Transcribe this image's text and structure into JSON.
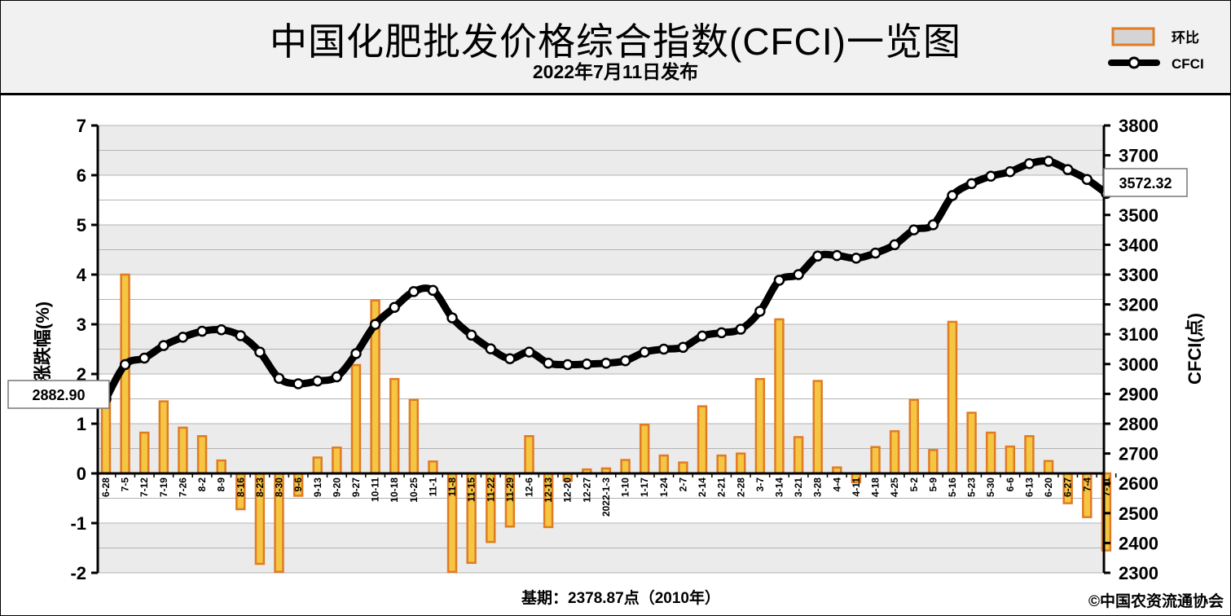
{
  "header": {
    "title": "中国化肥批发价格综合指数(CFCI)一览图",
    "subtitle": "2022年7月11日发布"
  },
  "footer": {
    "base_period": "基期：2378.87点（2010年）",
    "copyright": "©中国农资流通协会"
  },
  "legend": {
    "bar_label": "环比",
    "line_label": "CFCI"
  },
  "callouts": {
    "start_value": "2882.90",
    "end_value": "3572.32"
  },
  "colors": {
    "bar_fill": "#f5c642",
    "bar_edge": "#e07b24",
    "line": "#000000",
    "grid": "#b3b3b3",
    "band": "#ebebeb"
  },
  "chart_data": {
    "type": "bar+line",
    "categories": [
      "6-28",
      "7-5",
      "7-12",
      "7-19",
      "7-26",
      "8-2",
      "8-9",
      "8-16",
      "8-23",
      "8-30",
      "9-6",
      "9-13",
      "9-20",
      "9-27",
      "10-11",
      "10-18",
      "10-25",
      "11-1",
      "11-8",
      "11-15",
      "11-22",
      "11-29",
      "12-6",
      "12-13",
      "12-20",
      "12-27",
      "2022-1-3",
      "1-10",
      "1-17",
      "1-24",
      "2-7",
      "2-14",
      "2-21",
      "2-28",
      "3-7",
      "3-14",
      "3-21",
      "3-28",
      "4-4",
      "4-11",
      "4-18",
      "4-25",
      "5-2",
      "5-9",
      "5-16",
      "5-23",
      "5-30",
      "6-6",
      "6-13",
      "6-20",
      "6-27",
      "7-4",
      "7-11"
    ],
    "series": [
      {
        "name": "环比",
        "type": "bar",
        "axis": "left",
        "values": [
          1.5,
          4.0,
          0.82,
          1.45,
          0.92,
          0.75,
          0.26,
          -0.72,
          -1.82,
          -1.98,
          -0.45,
          0.32,
          0.52,
          2.18,
          3.48,
          1.9,
          1.48,
          0.24,
          -1.98,
          -1.8,
          -1.38,
          -1.07,
          0.75,
          -1.08,
          -0.15,
          0.08,
          0.1,
          0.27,
          0.98,
          0.36,
          0.22,
          1.35,
          0.36,
          0.4,
          1.9,
          3.1,
          0.73,
          1.86,
          0.12,
          -0.18,
          0.53,
          0.85,
          1.48,
          0.47,
          3.05,
          1.22,
          0.82,
          0.54,
          0.75,
          0.25,
          -0.6,
          -0.88,
          -1.55
        ]
      },
      {
        "name": "CFCI",
        "type": "line",
        "axis": "right",
        "values": [
          2882.9,
          2998,
          3020,
          3062,
          3090,
          3110,
          3115,
          3095,
          3040,
          2952,
          2934,
          2943,
          2957,
          3035,
          3133,
          3190,
          3243,
          3247,
          3155,
          3097,
          3051,
          3018,
          3040,
          3003,
          2998,
          3000,
          3003,
          3011,
          3040,
          3050,
          3056,
          3094,
          3105,
          3117,
          3177,
          3281,
          3300,
          3362,
          3364,
          3355,
          3372,
          3400,
          3450,
          3467,
          3565,
          3605,
          3630,
          3645,
          3672,
          3680,
          3652,
          3619,
          3572.32
        ]
      }
    ],
    "y_left": {
      "label": "涨跌幅(%)",
      "range": [
        -2,
        7
      ],
      "ticks": [
        -2,
        -1,
        0,
        1,
        2,
        3,
        4,
        5,
        6,
        7
      ]
    },
    "y_right": {
      "label": "CFCI(点)",
      "range": [
        2300,
        3800
      ],
      "ticks": [
        2300,
        2400,
        2500,
        2600,
        2700,
        2800,
        2900,
        3000,
        3100,
        3200,
        3300,
        3400,
        3500,
        3600,
        3700,
        3800
      ]
    },
    "grid": true,
    "legend_position": "top-right"
  }
}
